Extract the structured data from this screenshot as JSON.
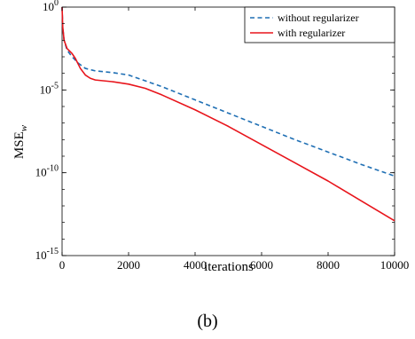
{
  "chart_data": {
    "type": "line",
    "xlabel": "iterations",
    "ylabel_base": "MSE",
    "ylabel_sub": "w",
    "ylog": true,
    "xlim": [
      0,
      10000
    ],
    "ylim_exp": [
      -15,
      0
    ],
    "xticks": [
      0,
      2000,
      4000,
      6000,
      8000,
      10000
    ],
    "xtick_labels": [
      "0",
      "2000",
      "4000",
      "6000",
      "8000",
      "10000"
    ],
    "yticks_exp": [
      0,
      -5,
      -10,
      -15
    ],
    "ytick_labels": [
      {
        "base": "10",
        "exp": "0"
      },
      {
        "base": "10",
        "exp": "-5"
      },
      {
        "base": "10",
        "exp": "-10"
      },
      {
        "base": "10",
        "exp": "-15"
      }
    ],
    "legend_position": "top-right",
    "series": [
      {
        "name": "without regularizer",
        "color": "#1f6fb4",
        "style": "dashed",
        "x": [
          0,
          20,
          60,
          150,
          300,
          500,
          700,
          1000,
          1500,
          2000,
          3000,
          4000,
          5000,
          6000,
          7000,
          8000,
          9000,
          10000
        ],
        "log10y": [
          0,
          -1.2,
          -2.0,
          -2.6,
          -3.0,
          -3.4,
          -3.7,
          -3.85,
          -3.95,
          -4.1,
          -4.8,
          -5.6,
          -6.4,
          -7.2,
          -8.0,
          -8.75,
          -9.5,
          -10.2
        ]
      },
      {
        "name": "with regularizer",
        "color": "#e8141b",
        "style": "solid",
        "x": [
          0,
          20,
          60,
          150,
          300,
          400,
          550,
          700,
          850,
          1000,
          1500,
          2000,
          2500,
          3000,
          4000,
          5000,
          6000,
          7000,
          8000,
          9000,
          10000
        ],
        "log10y": [
          0,
          -1.2,
          -2.0,
          -2.5,
          -2.8,
          -3.1,
          -3.7,
          -4.1,
          -4.3,
          -4.4,
          -4.5,
          -4.65,
          -4.9,
          -5.3,
          -6.2,
          -7.2,
          -8.3,
          -9.4,
          -10.5,
          -11.7,
          -12.9
        ]
      }
    ]
  },
  "caption": "(b)"
}
